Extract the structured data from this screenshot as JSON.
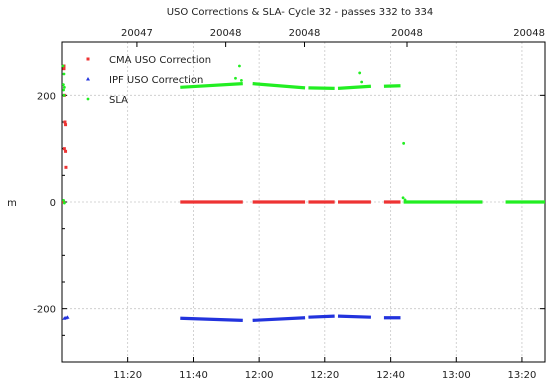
{
  "chart_data": {
    "type": "scatter",
    "title": "USO Corrections & SLA- Cycle 32 - passes 332 to 334",
    "ylabel": "m",
    "x_unit": "time of day (decimal hours)",
    "xlim": [
      11.0,
      13.45
    ],
    "ylim": [
      -300,
      300
    ],
    "grid": true,
    "legend_position": "top-left",
    "y_ticks": [
      -200,
      0,
      200
    ],
    "x_ticks": [
      {
        "value": 11.333,
        "label": "11:20"
      },
      {
        "value": 11.667,
        "label": "11:40"
      },
      {
        "value": 12.0,
        "label": "12:00"
      },
      {
        "value": 12.333,
        "label": "12:20"
      },
      {
        "value": 12.667,
        "label": "12:40"
      },
      {
        "value": 13.0,
        "label": "13:00"
      },
      {
        "value": 13.333,
        "label": "13:20"
      }
    ],
    "top_ticks": [
      {
        "value": 11.38,
        "label": "20047"
      },
      {
        "value": 11.83,
        "label": "20048"
      },
      {
        "value": 12.23,
        "label": "20048"
      },
      {
        "value": 12.75,
        "label": "20048"
      },
      {
        "value": 13.45,
        "label": "20048"
      }
    ],
    "series": [
      {
        "name": "CMA USO Correction",
        "color": "#ee3333",
        "marker": "square",
        "segments": [
          {
            "x": [
              11.6,
              11.917
            ],
            "y": [
              0,
              0
            ]
          },
          {
            "x": [
              11.967,
              12.233
            ],
            "y": [
              0,
              0
            ]
          },
          {
            "x": [
              12.25,
              12.383
            ],
            "y": [
              0,
              0
            ]
          },
          {
            "x": [
              12.4,
              12.567
            ],
            "y": [
              0,
              0
            ]
          },
          {
            "x": [
              12.633,
              12.717
            ],
            "y": [
              0,
              0
            ]
          }
        ],
        "points": [
          {
            "x": 11.01,
            "y": 255
          },
          {
            "x": 11.01,
            "y": 250
          },
          {
            "x": 11.012,
            "y": 200
          },
          {
            "x": 11.015,
            "y": 150
          },
          {
            "x": 11.018,
            "y": 145
          },
          {
            "x": 11.012,
            "y": 100
          },
          {
            "x": 11.018,
            "y": 95
          },
          {
            "x": 11.02,
            "y": 65
          },
          {
            "x": 11.008,
            "y": 0
          }
        ]
      },
      {
        "name": "IPF USO Correction",
        "color": "#2233dd",
        "marker": "triangle",
        "segments": [
          {
            "x": [
              11.6,
              11.917
            ],
            "y": [
              -218,
              -222
            ]
          },
          {
            "x": [
              11.967,
              12.233
            ],
            "y": [
              -222,
              -217
            ]
          },
          {
            "x": [
              12.25,
              12.383
            ],
            "y": [
              -216,
              -214
            ]
          },
          {
            "x": [
              12.4,
              12.567
            ],
            "y": [
              -214,
              -216
            ]
          },
          {
            "x": [
              12.633,
              12.717
            ],
            "y": [
              -217,
              -217
            ]
          }
        ],
        "points": [
          {
            "x": 11.012,
            "y": -218
          },
          {
            "x": 11.02,
            "y": -217
          },
          {
            "x": 11.028,
            "y": -216
          }
        ]
      },
      {
        "name": "SLA",
        "color": "#22ee22",
        "marker": "dot",
        "segments": [
          {
            "x": [
              11.6,
              11.917
            ],
            "y": [
              215,
              222
            ]
          },
          {
            "x": [
              11.967,
              12.233
            ],
            "y": [
              222,
              214
            ]
          },
          {
            "x": [
              12.25,
              12.383
            ],
            "y": [
              214,
              213
            ]
          },
          {
            "x": [
              12.4,
              12.567
            ],
            "y": [
              213,
              217
            ]
          },
          {
            "x": [
              12.633,
              12.717
            ],
            "y": [
              217,
              218
            ]
          },
          {
            "x": [
              12.733,
              13.133
            ],
            "y": [
              0,
              0
            ]
          },
          {
            "x": [
              13.25,
              13.45
            ],
            "y": [
              0,
              0
            ]
          }
        ],
        "points": [
          {
            "x": 11.005,
            "y": 255
          },
          {
            "x": 11.01,
            "y": 240
          },
          {
            "x": 11.008,
            "y": 210
          },
          {
            "x": 11.012,
            "y": 215
          },
          {
            "x": 11.007,
            "y": 220
          },
          {
            "x": 11.01,
            "y": 200
          },
          {
            "x": 11.008,
            "y": 3
          },
          {
            "x": 11.012,
            "y": -2
          },
          {
            "x": 11.9,
            "y": 255
          },
          {
            "x": 11.88,
            "y": 232
          },
          {
            "x": 11.91,
            "y": 228
          },
          {
            "x": 12.51,
            "y": 242
          },
          {
            "x": 12.52,
            "y": 225
          },
          {
            "x": 12.733,
            "y": 110
          },
          {
            "x": 12.73,
            "y": 8
          },
          {
            "x": 12.74,
            "y": 4
          }
        ]
      }
    ]
  }
}
